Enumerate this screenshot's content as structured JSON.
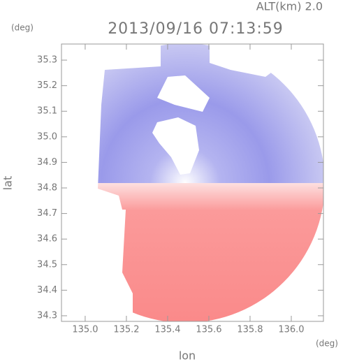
{
  "chart_data": {
    "type": "map",
    "title": "2013/09/16 07:13:59",
    "subtitle": "ALT(km) 2.0",
    "xlabel": "lon",
    "ylabel": "lat",
    "x_unit": "(deg)",
    "y_unit": "(deg)",
    "xlim": [
      134.885,
      136.156
    ],
    "ylim": [
      34.278,
      35.363
    ],
    "xticks": [
      {
        "value": 135.0,
        "label": "135.0"
      },
      135.2,
      135.4,
      135.6,
      135.8,
      {
        "value": 136.0,
        "label": "136.0"
      }
    ],
    "yticks": [
      34.3,
      34.4,
      34.5,
      34.6,
      34.7,
      34.8,
      34.9,
      {
        "value": 35.0,
        "label": "35.0"
      },
      35.1,
      35.2,
      35.3
    ]
  }
}
